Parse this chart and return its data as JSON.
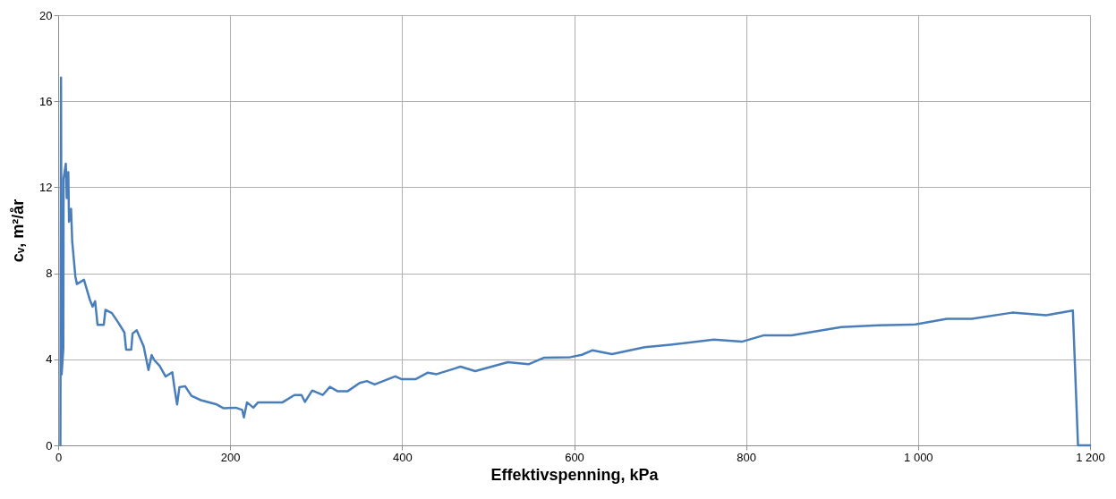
{
  "chart_data": {
    "type": "line",
    "xlabel": "Effektivspenning, kPa",
    "ylabel": "cᵥ, m²/år",
    "xlim": [
      0,
      1200
    ],
    "ylim": [
      0,
      20
    ],
    "xticks": [
      0,
      200,
      400,
      600,
      800,
      {
        "value": 1000,
        "label": "1 000"
      },
      {
        "value": 1200,
        "label": "1 200"
      }
    ],
    "yticks": [
      0,
      4,
      8,
      12,
      16,
      20
    ],
    "grid": true,
    "series": [
      {
        "color": "#4a7ebb",
        "x": [
          2.6,
          3.3,
          4,
          6,
          6.3,
          8.9,
          10,
          11.8,
          12.6,
          15,
          16.3,
          20,
          21.8,
          30,
          36.6,
          40,
          43,
          45.8,
          53,
          55,
          62.5,
          70,
          77,
          79,
          85,
          86.5,
          91.3,
          99.4,
          105,
          108.7,
          112,
          118,
          125,
          132.7,
          135.7,
          138.3,
          141,
          147.6,
          155,
          166,
          184.5,
          192,
          206.6,
          214,
          216,
          219.6,
          227,
          232.5,
          261,
          274.7,
          283,
          287,
          295.4,
          307.6,
          316,
          324.7,
          336.8,
          350.6,
          359,
          368,
          392,
          399,
          416,
          430,
          440,
          468,
          485,
          523,
          547,
          564.6,
          595.6,
          609,
          621.5,
          644,
          682,
          712,
          762.5,
          795,
          820,
          853,
          910.7,
          954,
          997,
          1033.5,
          1062.5,
          1109.4,
          1149,
          1180,
          1186,
          1200
        ],
        "values": [
          0,
          17.1,
          3.3,
          4.5,
          12.4,
          13.1,
          11.5,
          12.7,
          10.4,
          11,
          9.5,
          7.85,
          7.5,
          7.7,
          6.8,
          6.45,
          6.7,
          5.6,
          5.6,
          6.3,
          6.15,
          5.7,
          5.25,
          4.45,
          4.45,
          5.2,
          5.35,
          4.6,
          3.5,
          4.2,
          3.95,
          3.7,
          3.2,
          3.4,
          2.55,
          1.9,
          2.7,
          2.75,
          2.3,
          2.1,
          1.9,
          1.73,
          1.75,
          1.65,
          1.3,
          2.0,
          1.75,
          2.0,
          2.0,
          2.34,
          2.34,
          2.02,
          2.55,
          2.34,
          2.72,
          2.52,
          2.52,
          2.9,
          2.99,
          2.83,
          3.21,
          3.08,
          3.08,
          3.38,
          3.31,
          3.66,
          3.45,
          3.87,
          3.77,
          4.07,
          4.1,
          4.21,
          4.42,
          4.24,
          4.56,
          4.68,
          4.92,
          4.82,
          5.11,
          5.11,
          5.5,
          5.58,
          5.62,
          5.88,
          5.88,
          6.17,
          6.05,
          6.27,
          0,
          0
        ]
      }
    ]
  }
}
